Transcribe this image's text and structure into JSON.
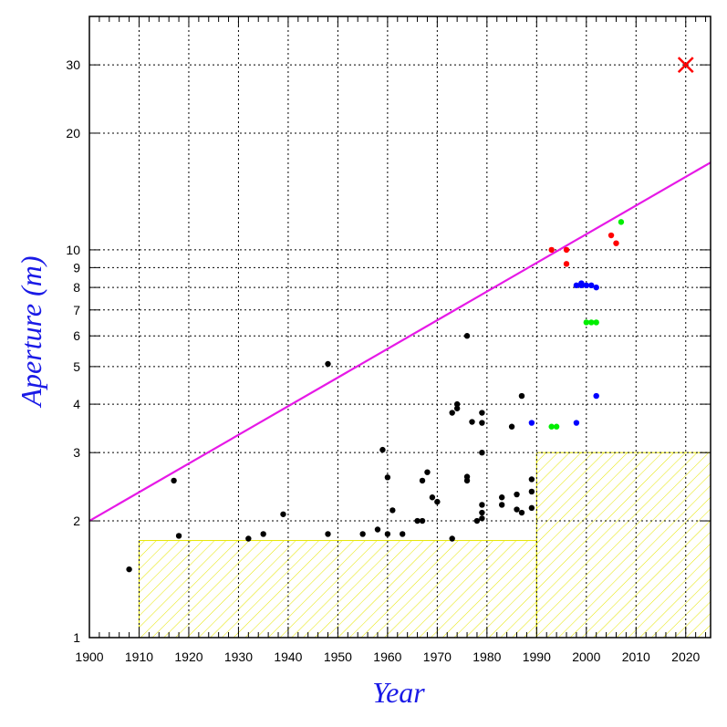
{
  "chart_data": {
    "type": "scatter",
    "xlabel": "Year",
    "ylabel": "Aperture (m)",
    "xlim": [
      1900,
      2025
    ],
    "ylim": [
      1,
      40
    ],
    "y_scale": "log",
    "grid": true,
    "x_ticks": [
      1900,
      1910,
      1920,
      1930,
      1940,
      1950,
      1960,
      1970,
      1980,
      1990,
      2000,
      2010,
      2020
    ],
    "y_ticks": [
      1,
      2,
      3,
      4,
      5,
      6,
      7,
      8,
      9,
      10,
      20,
      30
    ],
    "colors": {
      "axis_title": "#1a1ae6",
      "trend_line": "#e619e6",
      "hatch": "#e6e600",
      "target": "#ff0000"
    },
    "trend_line": {
      "x": [
        1900,
        2025
      ],
      "y": [
        2.0,
        16.8
      ]
    },
    "shaded_regions": [
      {
        "x": [
          1910,
          1990
        ],
        "y": [
          1.0,
          1.78
        ]
      },
      {
        "x": [
          1990,
          2025
        ],
        "y": [
          1.0,
          3.0
        ]
      }
    ],
    "series": [
      {
        "color": "#000000",
        "points": [
          [
            1908,
            1.5
          ],
          [
            1917,
            2.54
          ],
          [
            1918,
            1.83
          ],
          [
            1932,
            1.8
          ],
          [
            1935,
            1.85
          ],
          [
            1939,
            2.08
          ],
          [
            1948,
            5.08
          ],
          [
            1948,
            1.85
          ],
          [
            1955,
            1.85
          ],
          [
            1958,
            1.9
          ],
          [
            1959,
            3.05
          ],
          [
            1960,
            2.59
          ],
          [
            1960,
            1.85
          ],
          [
            1961,
            2.13
          ],
          [
            1963,
            1.85
          ],
          [
            1966,
            2.0
          ],
          [
            1967,
            2.0
          ],
          [
            1967,
            2.54
          ],
          [
            1968,
            2.67
          ],
          [
            1969,
            2.3
          ],
          [
            1970,
            2.24
          ],
          [
            1973,
            3.8
          ],
          [
            1973,
            1.8
          ],
          [
            1974,
            3.9
          ],
          [
            1974,
            4.0
          ],
          [
            1976,
            6.0
          ],
          [
            1976,
            2.54
          ],
          [
            1976,
            2.6
          ],
          [
            1977,
            3.6
          ],
          [
            1978,
            2.0
          ],
          [
            1979,
            3.8
          ],
          [
            1979,
            3.58
          ],
          [
            1979,
            3.0
          ],
          [
            1979,
            2.2
          ],
          [
            1979,
            2.1
          ],
          [
            1979,
            2.03
          ],
          [
            1983,
            2.3
          ],
          [
            1983,
            2.2
          ],
          [
            1985,
            3.5
          ],
          [
            1986,
            2.34
          ],
          [
            1986,
            2.14
          ],
          [
            1987,
            4.2
          ],
          [
            1987,
            2.1
          ],
          [
            1989,
            2.56
          ],
          [
            1989,
            2.38
          ],
          [
            1989,
            2.16
          ]
        ]
      },
      {
        "color": "#ff0000",
        "points": [
          [
            1993,
            10.0
          ],
          [
            1996,
            10.0
          ],
          [
            1996,
            9.2
          ],
          [
            2005,
            10.9
          ],
          [
            2006,
            10.4
          ]
        ]
      },
      {
        "color": "#0000ff",
        "points": [
          [
            1989,
            3.58
          ],
          [
            1998,
            3.58
          ],
          [
            1998,
            8.1
          ],
          [
            1999,
            8.1
          ],
          [
            1999,
            8.2
          ],
          [
            2000,
            8.1
          ],
          [
            2001,
            8.1
          ],
          [
            2002,
            8.0
          ],
          [
            2002,
            4.2
          ]
        ]
      },
      {
        "color": "#00ee00",
        "points": [
          [
            1993,
            3.5
          ],
          [
            1994,
            3.5
          ],
          [
            2000,
            6.5
          ],
          [
            2001,
            6.5
          ],
          [
            2002,
            6.5
          ],
          [
            2007,
            11.8
          ]
        ]
      },
      {
        "color": "#ff0000",
        "marker": "x",
        "points": [
          [
            2020,
            30
          ]
        ]
      }
    ]
  }
}
